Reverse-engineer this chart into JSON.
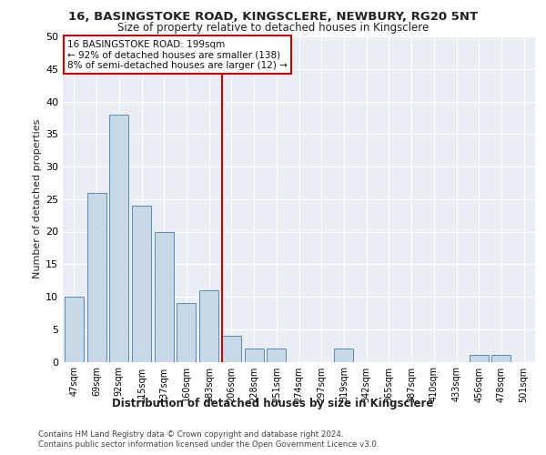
{
  "title1": "16, BASINGSTOKE ROAD, KINGSCLERE, NEWBURY, RG20 5NT",
  "title2": "Size of property relative to detached houses in Kingsclere",
  "xlabel": "Distribution of detached houses by size in Kingsclere",
  "ylabel": "Number of detached properties",
  "categories": [
    "47sqm",
    "69sqm",
    "92sqm",
    "115sqm",
    "137sqm",
    "160sqm",
    "183sqm",
    "206sqm",
    "228sqm",
    "251sqm",
    "274sqm",
    "297sqm",
    "319sqm",
    "342sqm",
    "365sqm",
    "387sqm",
    "410sqm",
    "433sqm",
    "456sqm",
    "478sqm",
    "501sqm"
  ],
  "values": [
    10,
    26,
    38,
    24,
    20,
    9,
    11,
    4,
    2,
    2,
    0,
    0,
    2,
    0,
    0,
    0,
    0,
    0,
    1,
    1,
    0
  ],
  "bar_color": "#c8d8e8",
  "bar_edge_color": "#5a8ab0",
  "vline_color": "#cc0000",
  "annotation_line1": "16 BASINGSTOKE ROAD: 199sqm",
  "annotation_line2": "← 92% of detached houses are smaller (138)",
  "annotation_line3": "8% of semi-detached houses are larger (12) →",
  "annotation_box_color": "#ffffff",
  "annotation_box_edge": "#cc0000",
  "ylim": [
    0,
    50
  ],
  "yticks": [
    0,
    5,
    10,
    15,
    20,
    25,
    30,
    35,
    40,
    45,
    50
  ],
  "background_color": "#e8eef4",
  "footer1": "Contains HM Land Registry data © Crown copyright and database right 2024.",
  "footer2": "Contains public sector information licensed under the Open Government Licence v3.0."
}
